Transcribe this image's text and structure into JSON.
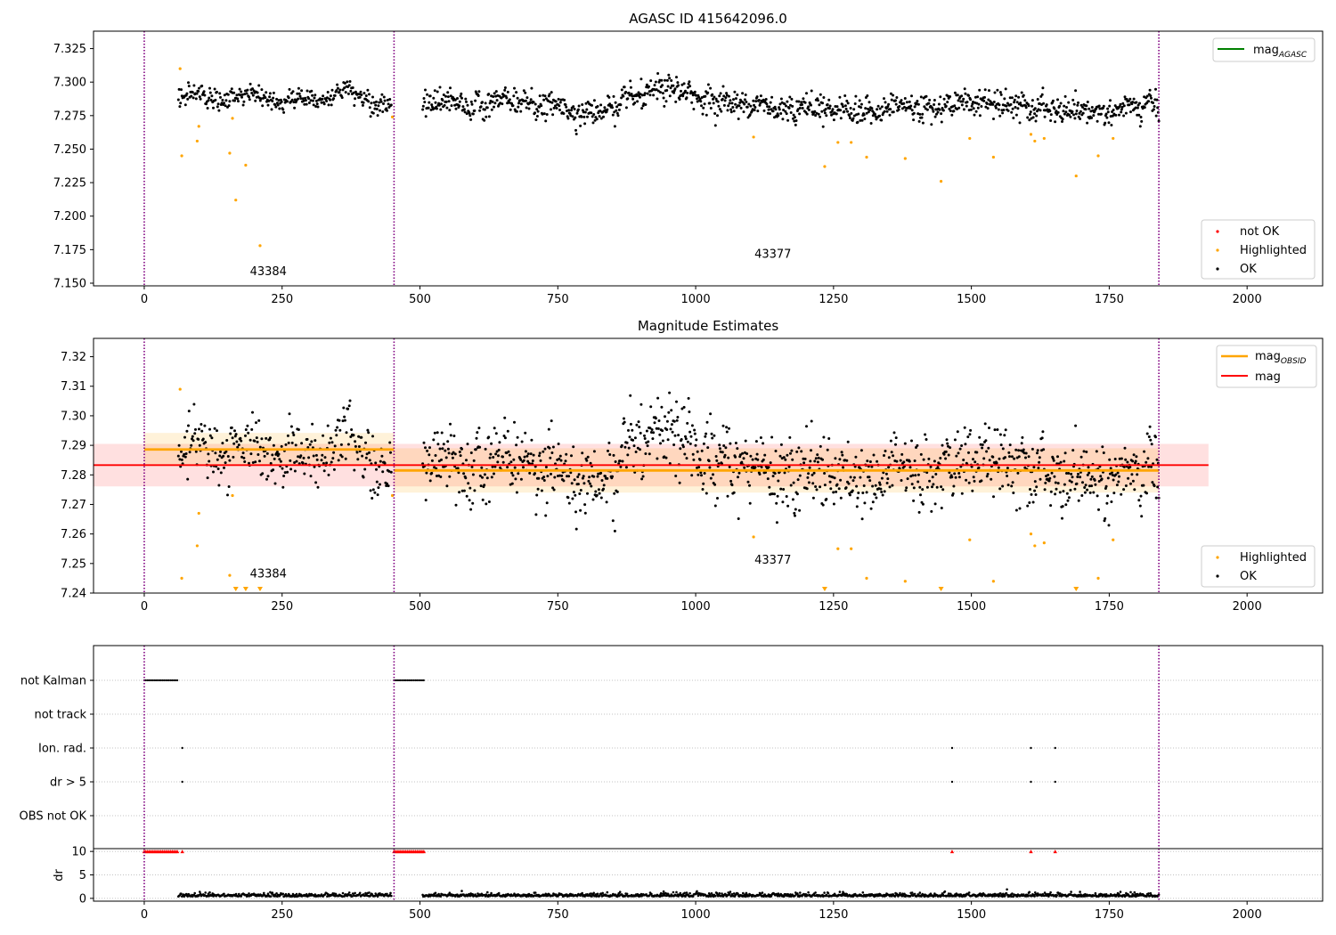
{
  "figure": {
    "panel1_title": "AGASC ID 415642096.0",
    "panel2_title": "Magnitude Estimates"
  },
  "colors": {
    "ok": "#000000",
    "highlighted": "#ffa500",
    "not_ok": "#ff0000",
    "mag_agasc": "#008000",
    "mag": "#ff0000",
    "mag_obsid": "#ffa500",
    "boundary": "#800080"
  },
  "chart_data": [
    {
      "type": "scatter",
      "panel": "agasc",
      "title": "AGASC ID 415642096.0",
      "xlim": [
        -92,
        2137
      ],
      "ylim": [
        7.148,
        7.338
      ],
      "xticks": [
        "0",
        "250",
        "500",
        "750",
        "1000",
        "1250",
        "1500",
        "1750",
        "2000"
      ],
      "yticks": [
        "7.150",
        "7.175",
        "7.200",
        "7.225",
        "7.250",
        "7.275",
        "7.300",
        "7.325"
      ],
      "obsid_boundaries": [
        0,
        453,
        1840
      ],
      "obsid_labels": [
        {
          "text": "43384",
          "x": 225,
          "y": 7.156
        },
        {
          "text": "43377",
          "x": 1140,
          "y": 7.169
        }
      ],
      "legend_upper": [
        {
          "label": "mag",
          "sub": "AGASC",
          "kind": "line"
        }
      ],
      "legend_lower": [
        {
          "label": "not OK",
          "kind": "point",
          "color": "not_ok"
        },
        {
          "label": "Highlighted",
          "kind": "point",
          "color": "highlighted"
        },
        {
          "label": "OK",
          "kind": "point",
          "color": "ok"
        }
      ],
      "ok_segments": [
        {
          "x0": 62,
          "x1": 448,
          "n": 300,
          "means": [
            [
              62,
              7.29
            ],
            [
              150,
              7.287
            ],
            [
              250,
              7.291
            ],
            [
              350,
              7.29
            ],
            [
              448,
              7.281
            ]
          ],
          "noise": 0.004
        },
        {
          "x0": 505,
          "x1": 1840,
          "n": 1150,
          "means": [
            [
              505,
              7.283
            ],
            [
              700,
              7.282
            ],
            [
              800,
              7.279
            ],
            [
              950,
              7.292
            ],
            [
              1100,
              7.284
            ],
            [
              1300,
              7.28
            ],
            [
              1500,
              7.285
            ],
            [
              1650,
              7.278
            ],
            [
              1840,
              7.28
            ]
          ],
          "noise": 0.005
        }
      ],
      "highlighted_points": [
        [
          65,
          7.31
        ],
        [
          68,
          7.245
        ],
        [
          96,
          7.256
        ],
        [
          99,
          7.267
        ],
        [
          155,
          7.247
        ],
        [
          160,
          7.273
        ],
        [
          166,
          7.212
        ],
        [
          184,
          7.238
        ],
        [
          210,
          7.178
        ],
        [
          450,
          7.274
        ],
        [
          1105,
          7.259
        ],
        [
          1234,
          7.237
        ],
        [
          1258,
          7.255
        ],
        [
          1282,
          7.255
        ],
        [
          1310,
          7.244
        ],
        [
          1380,
          7.243
        ],
        [
          1445,
          7.226
        ],
        [
          1497,
          7.258
        ],
        [
          1540,
          7.244
        ],
        [
          1608,
          7.261
        ],
        [
          1615,
          7.256
        ],
        [
          1632,
          7.258
        ],
        [
          1690,
          7.23
        ],
        [
          1730,
          7.245
        ],
        [
          1757,
          7.258
        ]
      ]
    },
    {
      "type": "scatter",
      "panel": "magnitude_estimates",
      "title": "Magnitude Estimates",
      "xlim": [
        -92,
        2137
      ],
      "ylim": [
        7.24,
        7.3262
      ],
      "xticks": [
        "0",
        "250",
        "500",
        "750",
        "1000",
        "1250",
        "1500",
        "1750",
        "2000"
      ],
      "yticks": [
        "7.24",
        "7.25",
        "7.26",
        "7.27",
        "7.28",
        "7.29",
        "7.30",
        "7.31",
        "7.32"
      ],
      "obsid_boundaries": [
        0,
        453,
        1840
      ],
      "obsid_labels": [
        {
          "text": "43384",
          "x": 225,
          "y": 7.2452
        },
        {
          "text": "43377",
          "x": 1140,
          "y": 7.25
        }
      ],
      "mag": {
        "value": 7.2833,
        "x0": -92,
        "x1": 1930,
        "band": [
          7.2761,
          7.2905
        ]
      },
      "mag_obsid": [
        {
          "value": 7.2886,
          "x0": 0,
          "x1": 453,
          "band": [
            7.283,
            7.2942
          ]
        },
        {
          "value": 7.2815,
          "x0": 453,
          "x1": 1840,
          "band": [
            7.274,
            7.289
          ]
        }
      ],
      "legend_upper": [
        {
          "label": "mag",
          "sub": "OBSID",
          "kind": "line",
          "color": "mag_obsid"
        },
        {
          "label": "mag",
          "kind": "line",
          "color": "mag"
        }
      ],
      "legend_lower": [
        {
          "label": "Highlighted",
          "kind": "point",
          "color": "highlighted"
        },
        {
          "label": "OK",
          "kind": "point",
          "color": "ok"
        }
      ],
      "highlighted_points": [
        [
          65,
          7.309
        ],
        [
          68,
          7.245
        ],
        [
          96,
          7.256
        ],
        [
          99,
          7.267
        ],
        [
          155,
          7.246
        ],
        [
          160,
          7.273
        ],
        [
          450,
          7.273
        ],
        [
          1105,
          7.259
        ],
        [
          1258,
          7.255
        ],
        [
          1282,
          7.255
        ],
        [
          1310,
          7.245
        ],
        [
          1380,
          7.244
        ],
        [
          1497,
          7.258
        ],
        [
          1540,
          7.244
        ],
        [
          1608,
          7.26
        ],
        [
          1615,
          7.256
        ],
        [
          1632,
          7.257
        ],
        [
          1730,
          7.245
        ],
        [
          1757,
          7.258
        ]
      ],
      "out_of_range_markers": [
        166,
        184,
        210,
        1234,
        1445,
        1690
      ]
    },
    {
      "type": "scatter",
      "panel": "flags",
      "xlim": [
        -92,
        2137
      ],
      "xticks": [
        "0",
        "250",
        "500",
        "750",
        "1000",
        "1250",
        "1500",
        "1750",
        "2000"
      ],
      "flag_rows": [
        "not Kalman",
        "not track",
        "Ion. rad.",
        "dr > 5",
        "OBS not OK"
      ],
      "flag_points": {
        "not Kalman": [
          [
            0,
            60
          ],
          [
            453,
            508
          ]
        ],
        "not track": [],
        "Ion. rad.": [
          69,
          1465,
          1608,
          1652
        ],
        "dr > 5": [
          69,
          1465,
          1608,
          1652
        ],
        "OBS not OK": []
      },
      "dr": {
        "ylabel": "dr",
        "yticks": [
          "0",
          "5",
          "10"
        ],
        "ylim": [
          -0.6,
          10.6
        ],
        "clipped_ranges": [
          [
            0,
            60
          ],
          [
            453,
            508
          ]
        ],
        "clipped_points": [
          69,
          1465,
          1608,
          1652
        ],
        "typical_level": 0.4
      }
    }
  ]
}
